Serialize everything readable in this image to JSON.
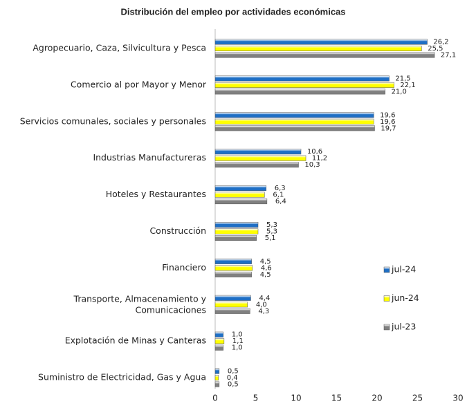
{
  "chart_data": {
    "type": "hbar",
    "title": "Distribución del empleo por actividades económicas",
    "categories": [
      "Agropecuario, Caza, Silvicultura y Pesca",
      "Comercio al por Mayor y Menor",
      "Servicios comunales, sociales y personales",
      "Industrias Manufactureras",
      "Hoteles y Restaurantes",
      "Construcción",
      "Financiero",
      "Transporte, Almacenamiento y\nComunicaciones",
      "Explotación de Minas y Canteras",
      "Suministro de Electricidad, Gas y Agua"
    ],
    "series": [
      {
        "name": "jul-24",
        "color": "#1f6fc5",
        "values": [
          26.2,
          21.5,
          19.6,
          10.6,
          6.3,
          5.3,
          4.5,
          4.4,
          1.0,
          0.5
        ],
        "value_labels": [
          "26,2",
          "21,5",
          "19,6",
          "10,6",
          "6,3",
          "5,3",
          "4,5",
          "4,4",
          "1,0",
          "0,5"
        ]
      },
      {
        "name": "jun-24",
        "color": "#ffff00",
        "values": [
          25.5,
          22.1,
          19.6,
          11.2,
          6.1,
          5.3,
          4.6,
          4.0,
          1.1,
          0.4
        ],
        "value_labels": [
          "25,5",
          "22,1",
          "19,6",
          "11,2",
          "6,1",
          "5,3",
          "4,6",
          "4,0",
          "1,1",
          "0,4"
        ]
      },
      {
        "name": "jul-23",
        "color": "#808080",
        "values": [
          27.1,
          21.0,
          19.7,
          10.3,
          6.4,
          5.1,
          4.5,
          4.3,
          1.0,
          0.5
        ],
        "value_labels": [
          "27,1",
          "21,0",
          "19,7",
          "10,3",
          "6,4",
          "5,1",
          "4,5",
          "4,3",
          "1,0",
          "0,5"
        ]
      }
    ],
    "xlim": [
      0,
      30
    ],
    "xticks": [
      0,
      5,
      10,
      15,
      20,
      25,
      30
    ],
    "legend": "right"
  }
}
